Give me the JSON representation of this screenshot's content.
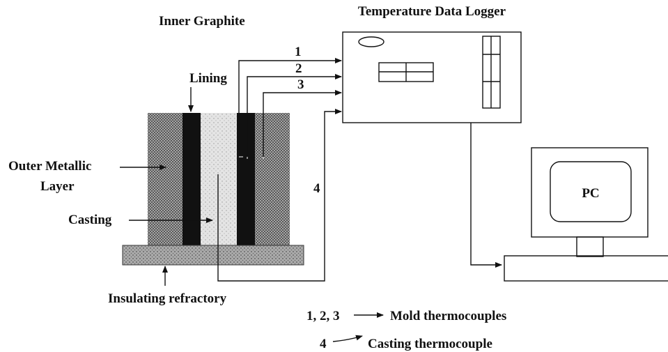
{
  "title": "Temperature Data Logger",
  "labels": {
    "inner_graphite_lining": [
      "Inner Graphite",
      "Lining"
    ],
    "outer_metallic_layer": [
      "Outer Metallic",
      "Layer"
    ],
    "casting": "Casting",
    "insulating_refractory": "Insulating refractory",
    "pc": "PC"
  },
  "thermocouples": [
    "1",
    "2",
    "3",
    "4"
  ],
  "legend": [
    {
      "key": "1, 2, 3",
      "label": "Mold thermocouples"
    },
    {
      "key": "4",
      "label": "Casting thermocouple"
    }
  ]
}
